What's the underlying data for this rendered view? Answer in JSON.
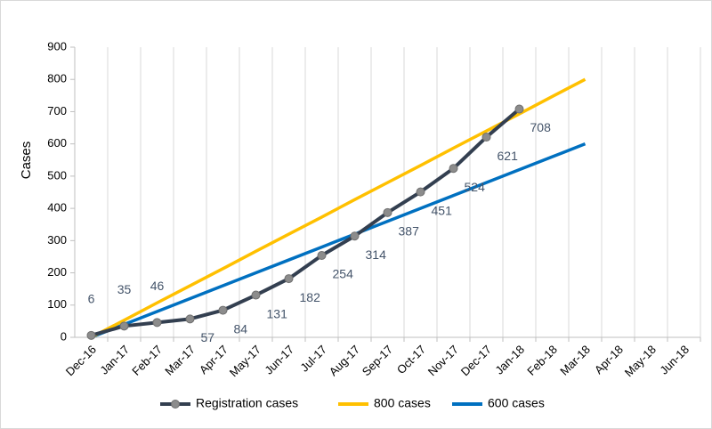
{
  "chart_data": {
    "type": "line",
    "ylabel": "Cases",
    "categories": [
      "Dec-16",
      "Jan-17",
      "Feb-17",
      "Mar-17",
      "Apr-17",
      "May-17",
      "Jun-17",
      "Jul-17",
      "Aug-17",
      "Sep-17",
      "Oct-17",
      "Nov-17",
      "Dec-17",
      "Jan-18",
      "Feb-18",
      "Mar-18",
      "Apr-18",
      "May-18",
      "Jun-18"
    ],
    "series": [
      {
        "name": "Registration cases",
        "color": "#333f50",
        "marker_color": "#8c8c8c",
        "data_labels": true,
        "values": [
          6,
          35,
          46,
          57,
          84,
          131,
          182,
          254,
          314,
          387,
          451,
          524,
          621,
          708,
          null,
          null,
          null,
          null,
          null
        ]
      },
      {
        "name": "800  cases",
        "color": "#ffc000",
        "values": [
          0,
          53,
          107,
          160,
          213,
          267,
          320,
          373,
          427,
          480,
          533,
          587,
          640,
          693,
          747,
          800,
          null,
          null,
          null
        ]
      },
      {
        "name": "600  cases",
        "color": "#0070c0",
        "values": [
          0,
          40,
          80,
          120,
          160,
          200,
          240,
          280,
          320,
          360,
          400,
          440,
          480,
          520,
          560,
          600,
          null,
          null,
          null
        ]
      }
    ],
    "ylim": [
      0,
      900
    ],
    "yticks": [
      0,
      100,
      200,
      300,
      400,
      500,
      600,
      700,
      800,
      900
    ],
    "grid": "x",
    "legend": "bottom"
  }
}
